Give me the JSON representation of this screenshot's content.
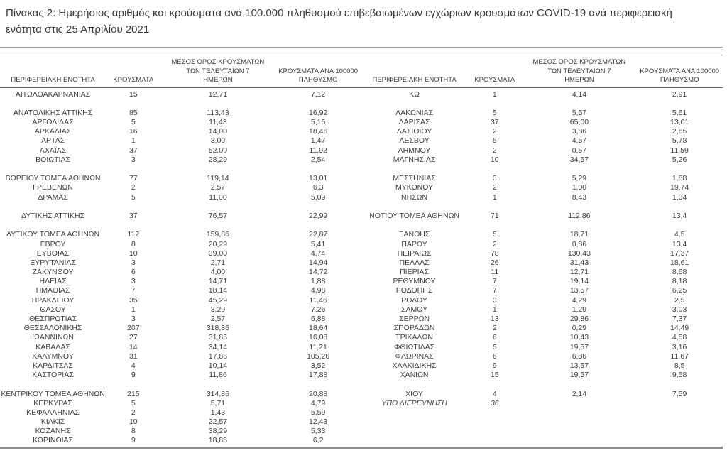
{
  "title": "Πίνακας 2: Ημερήσιος αριθμός και κρούσματα ανά 100.000 πληθυσμού επιβεβαιωμένων εγχώριων κρουσμάτων COVID-19 ανά περιφερειακή ενότητα στις 25 Απριλίου 2021",
  "columns": {
    "region": "ΠΕΡΙΦΕΡΕΙΑΚΗ ΕΝΟΤΗΤΑ",
    "cases": "ΚΡΟΥΣΜΑΤΑ",
    "avg7_lines": [
      "ΜΕΣΟΣ ΟΡΟΣ ΚΡΟΥΣΜΑΤΩΝ",
      "ΤΩΝ ΤΕΛΕΥΤΑΙΩΝ 7",
      "ΗΜΕΡΩΝ"
    ],
    "per100k_lines": [
      "ΚΡΟΥΣΜΑΤΑ ΑΝΑ 100000",
      "ΠΛΗΘΥΣΜΟ"
    ]
  },
  "table": {
    "left_rows": [
      [
        "ΑΙΤΩΛΟΑΚΑΡΝΑΝΙΑΣ",
        "15",
        "12,71",
        "7,12"
      ],
      null,
      [
        "ΑΝΑΤΟΛΙΚΗΣ ΑΤΤΙΚΗΣ",
        "85",
        "113,43",
        "16,92"
      ],
      [
        "ΑΡΓΟΛΙΔΑΣ",
        "5",
        "11,43",
        "5,15"
      ],
      [
        "ΑΡΚΑΔΙΑΣ",
        "16",
        "14,00",
        "18,46"
      ],
      [
        "ΑΡΤΑΣ",
        "1",
        "3,00",
        "1,47"
      ],
      [
        "ΑΧΑΪΑΣ",
        "37",
        "52,00",
        "11,92"
      ],
      [
        "ΒΟΙΩΤΙΑΣ",
        "3",
        "28,29",
        "2,54"
      ],
      null,
      [
        "ΒΟΡΕΙΟΥ ΤΟΜΕΑ ΑΘΗΝΩΝ",
        "77",
        "119,14",
        "13,01"
      ],
      [
        "ΓΡΕΒΕΝΩΝ",
        "2",
        "2,57",
        "6,3"
      ],
      [
        "ΔΡΑΜΑΣ",
        "5",
        "11,00",
        "5,09"
      ],
      null,
      [
        "ΔΥΤΙΚΗΣ ΑΤΤΙΚΗΣ",
        "37",
        "76,57",
        "22,99"
      ],
      null,
      [
        "ΔΥΤΙΚΟΥ ΤΟΜΕΑ ΑΘΗΝΩΝ",
        "112",
        "159,86",
        "22,87"
      ],
      [
        "ΕΒΡΟΥ",
        "8",
        "20,29",
        "5,41"
      ],
      [
        "ΕΥΒΟΙΑΣ",
        "10",
        "39,00",
        "4,74"
      ],
      [
        "ΕΥΡΥΤΑΝΙΑΣ",
        "3",
        "2,71",
        "14,94"
      ],
      [
        "ΖΑΚΥΝΘΟΥ",
        "6",
        "4,00",
        "14,72"
      ],
      [
        "ΗΛΕΙΑΣ",
        "3",
        "14,71",
        "1,88"
      ],
      [
        "ΗΜΑΘΙΑΣ",
        "7",
        "18,14",
        "4,98"
      ],
      [
        "ΗΡΑΚΛΕΙΟΥ",
        "35",
        "45,29",
        "11,46"
      ],
      [
        "ΘΑΣΟΥ",
        "1",
        "3,29",
        "7,26"
      ],
      [
        "ΘΕΣΠΡΩΤΙΑΣ",
        "3",
        "2,57",
        "6,88"
      ],
      [
        "ΘΕΣΣΑΛΟΝΙΚΗΣ",
        "207",
        "318,86",
        "18,64"
      ],
      [
        "ΙΩΑΝΝΙΝΩΝ",
        "27",
        "31,86",
        "16,08"
      ],
      [
        "ΚΑΒΑΛΑΣ",
        "14",
        "34,14",
        "11,21"
      ],
      [
        "ΚΑΛΥΜΝΟΥ",
        "31",
        "17,86",
        "105,26"
      ],
      [
        "ΚΑΡΔΙΤΣΑΣ",
        "4",
        "10,14",
        "3,52"
      ],
      [
        "ΚΑΣΤΟΡΙΑΣ",
        "9",
        "11,86",
        "17,88"
      ],
      null,
      [
        "ΚΕΝΤΡΙΚΟΥ ΤΟΜΕΑ ΑΘΗΝΩΝ",
        "215",
        "314,86",
        "20,88"
      ],
      [
        "ΚΕΡΚΥΡΑΣ",
        "5",
        "5,71",
        "4,79"
      ],
      [
        "ΚΕΦΑΛΛΗΝΙΑΣ",
        "2",
        "1,43",
        "5,59"
      ],
      [
        "ΚΙΛΚΙΣ",
        "10",
        "22,57",
        "12,43"
      ],
      [
        "ΚΟΖΑΝΗΣ",
        "8",
        "38,29",
        "5,33"
      ],
      [
        "ΚΟΡΙΝΘΙΑΣ",
        "9",
        "18,86",
        "6,2"
      ]
    ],
    "right_rows": [
      [
        "ΚΩ",
        "1",
        "4,14",
        "2,91"
      ],
      null,
      [
        "ΛΑΚΩΝΙΑΣ",
        "5",
        "5,57",
        "5,61"
      ],
      [
        "ΛΑΡΙΣΑΣ",
        "37",
        "65,00",
        "13,01"
      ],
      [
        "ΛΑΣΙΘΙΟΥ",
        "2",
        "3,86",
        "2,65"
      ],
      [
        "ΛΕΣΒΟΥ",
        "5",
        "4,57",
        "5,78"
      ],
      [
        "ΛΗΜΝΟΥ",
        "2",
        "0,57",
        "11,59"
      ],
      [
        "ΜΑΓΝΗΣΙΑΣ",
        "10",
        "34,57",
        "5,26"
      ],
      null,
      [
        "ΜΕΣΣΗΝΙΑΣ",
        "3",
        "5,29",
        "1,88"
      ],
      [
        "ΜΥΚΟΝΟΥ",
        "2",
        "1,00",
        "19,74"
      ],
      [
        "ΝΗΣΩΝ",
        "1",
        "8,43",
        "1,34"
      ],
      null,
      [
        "ΝΟΤΙΟΥ ΤΟΜΕΑ ΑΘΗΝΩΝ",
        "71",
        "112,86",
        "13,4"
      ],
      null,
      [
        "ΞΑΝΘΗΣ",
        "5",
        "18,71",
        "4,5"
      ],
      [
        "ΠΑΡΟΥ",
        "2",
        "0,86",
        "13,4"
      ],
      [
        "ΠΕΙΡΑΙΩΣ",
        "78",
        "130,43",
        "17,37"
      ],
      [
        "ΠΕΛΛΑΣ",
        "26",
        "31,43",
        "18,61"
      ],
      [
        "ΠΙΕΡΙΑΣ",
        "11",
        "12,71",
        "8,68"
      ],
      [
        "ΡΕΘΥΜΝΟΥ",
        "7",
        "19,14",
        "8,18"
      ],
      [
        "ΡΟΔΟΠΗΣ",
        "7",
        "13,57",
        "6,25"
      ],
      [
        "ΡΟΔΟΥ",
        "3",
        "4,29",
        "2,5"
      ],
      [
        "ΣΑΜΟΥ",
        "1",
        "1,29",
        "3,03"
      ],
      [
        "ΣΕΡΡΩΝ",
        "13",
        "29,86",
        "7,37"
      ],
      [
        "ΣΠΟΡΑΔΩΝ",
        "2",
        "0,29",
        "14,49"
      ],
      [
        "ΤΡΙΚΑΛΩΝ",
        "6",
        "10,43",
        "4,58"
      ],
      [
        "ΦΘΙΩΤΙΔΑΣ",
        "5",
        "19,57",
        "3,16"
      ],
      [
        "ΦΛΩΡΙΝΑΣ",
        "6",
        "6,86",
        "11,67"
      ],
      [
        "ΧΑΛΚΙΔΙΚΗΣ",
        "9",
        "13,57",
        "8,5"
      ],
      [
        "ΧΑΝΙΩΝ",
        "15",
        "19,57",
        "9,58"
      ],
      null,
      [
        "ΧΙΟΥ",
        "4",
        "2,14",
        "7,59"
      ],
      [
        "ΥΠΟ ΔΙΕΡΕΥΝΗΣΗ",
        "36",
        "",
        "",
        "italic"
      ]
    ]
  },
  "colors": {
    "text": "#3e3e3e",
    "rule_light": "#9b9b9b",
    "rule_dark": "#666666",
    "bottom_bar": "#8f8f8f"
  }
}
